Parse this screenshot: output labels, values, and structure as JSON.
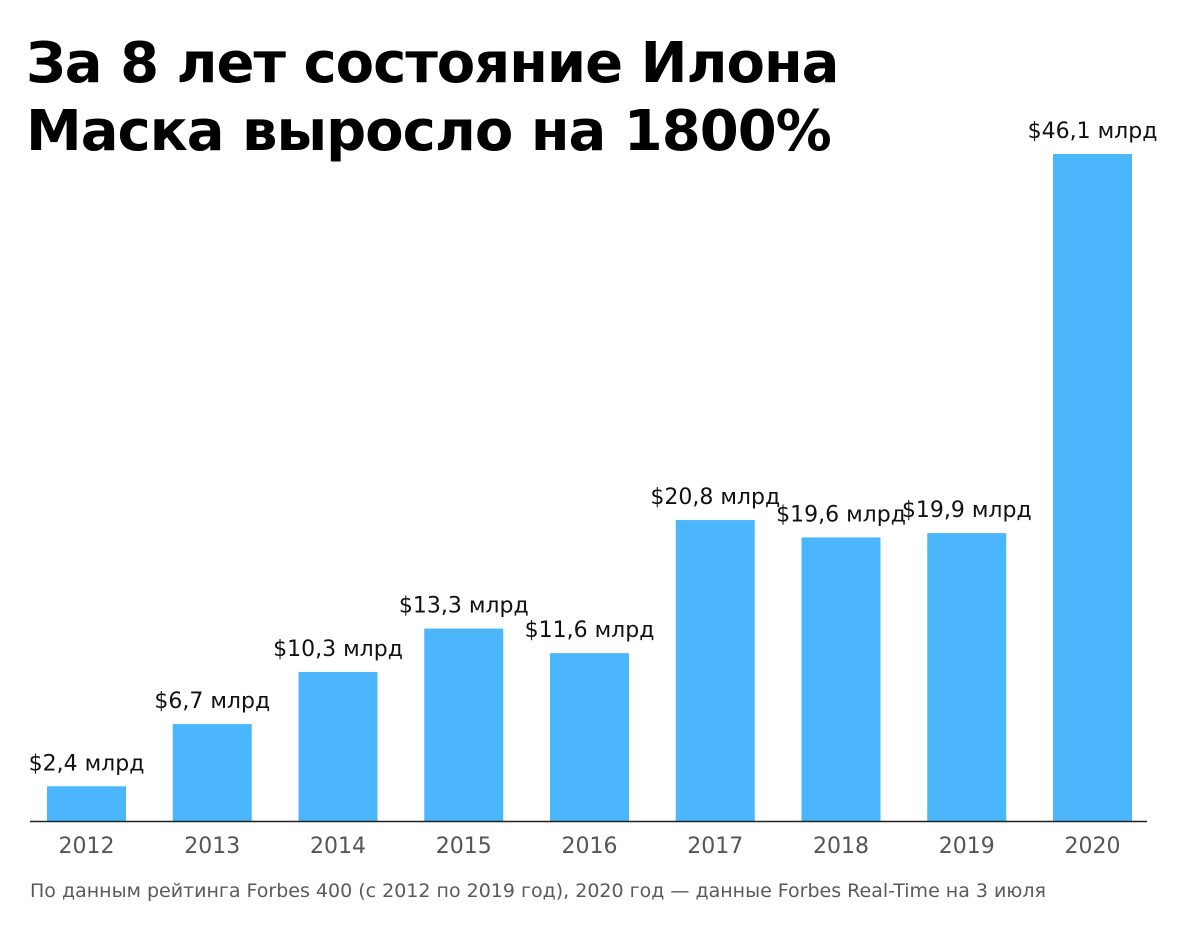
{
  "chart_data": {
    "type": "bar",
    "title": "За 8 лет состояние Илона Маска выросло на 1800%",
    "categories": [
      "2012",
      "2013",
      "2014",
      "2015",
      "2016",
      "2017",
      "2018",
      "2019",
      "2020"
    ],
    "values": [
      2.4,
      6.7,
      10.3,
      13.3,
      11.6,
      20.8,
      19.6,
      19.9,
      46.1
    ],
    "value_labels": [
      "$2,4 млрд",
      "$6,7 млрд",
      "$10,3 млрд",
      "$13,3 млрд",
      "$11,6 млрд",
      "$20,8 млрд",
      "$19,6 млрд",
      "$19,9 млрд",
      "$46,1 млрд"
    ],
    "xlabel": "",
    "ylabel": "",
    "ylim": [
      0,
      46.1
    ],
    "grid": false,
    "legend": "none",
    "bar_color": "#4bb6fb",
    "axis_color": "#222222",
    "source": "По данным рейтинга Forbes 400 (с 2012 по 2019 год), 2020 год — данные Forbes Real-Time на 3 июля"
  }
}
